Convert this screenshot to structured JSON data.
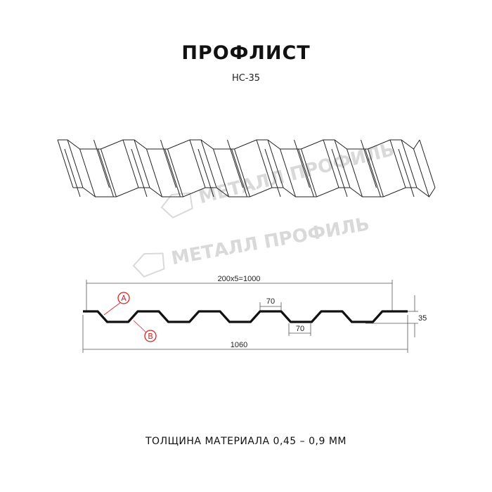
{
  "header": {
    "title": "ПРОФЛИСТ",
    "subtitle": "НС-35"
  },
  "watermark": {
    "text": "МЕТАЛЛ ПРОФИЛЬ"
  },
  "drawing": {
    "dim_pitch": "200x5=1000",
    "dim_top_width": "70",
    "dim_bottom_width": "70",
    "dim_height": "35",
    "dim_total_width": "1060",
    "marker_a": "A",
    "marker_b": "B",
    "marker_color": "#e02020",
    "line_color": "#111111"
  },
  "footer": {
    "text": "ТОЛЩИНА МАТЕРИАЛА 0,45 – 0,9 ММ"
  }
}
